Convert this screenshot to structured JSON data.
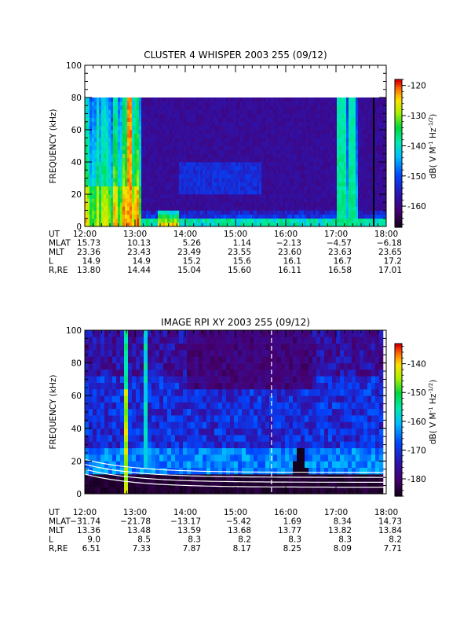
{
  "chart_data": [
    {
      "type": "heatmap",
      "title": "CLUSTER 4 WHISPER 2003 255 (09/12)",
      "ylabel": "FREQUENCY (kHz)",
      "ylim": [
        0,
        100
      ],
      "yticks": [
        "0",
        "20",
        "40",
        "60",
        "80",
        "100"
      ],
      "xlim": [
        "12:00",
        "18:00"
      ],
      "colorbar": {
        "label": "dB( V M⁻¹ Hz⁻¹ᐟ²)",
        "label_parts": {
          "a": "dB( V M",
          "b": "-1",
          "c": " Hz",
          "d": "-1/2",
          "e": ")"
        },
        "range": [
          -167,
          -118
        ],
        "ticks": [
          "-120",
          "-130",
          "-140",
          "-150",
          "-160"
        ],
        "colormap": "rainbow"
      },
      "data_region": {
        "freq_max_khz": 80
      },
      "events": [
        {
          "name": "broadband emission",
          "start": "12:00",
          "end": "13:05",
          "freq_top_khz": 80,
          "level_db": -128
        },
        {
          "name": "intense burst",
          "start": "12:48",
          "end": "12:56",
          "freq_top_khz": 80,
          "level_db": -120
        },
        {
          "name": "low-frequency enhancement",
          "start": "13:25",
          "end": "13:50",
          "freq_top_khz": 10,
          "level_db": -122
        },
        {
          "name": "emission band",
          "start": "17:00",
          "end": "17:25",
          "freq_top_khz": 80,
          "level_db": -140
        },
        {
          "name": "data gap",
          "start": "17:44",
          "end": "17:46",
          "level_db": null
        }
      ],
      "ephemeris": {
        "rows": [
          {
            "label": "UT",
            "values": [
              "12:00",
              "13:00",
              "14:00",
              "15:00",
              "16:00",
              "17:00",
              "18:00"
            ]
          },
          {
            "label": "MLAT",
            "values": [
              "15.73",
              "10.13",
              "5.26",
              "1.14",
              "−2.13",
              "−4.57",
              "−6.18"
            ]
          },
          {
            "label": "MLT",
            "values": [
              "23.36",
              "23.43",
              "23.49",
              "23.55",
              "23.60",
              "23.63",
              "23.65"
            ]
          },
          {
            "label": "L",
            "values": [
              "14.9",
              "14.9",
              "15.2",
              "15.6",
              "16.1",
              "16.7",
              "17.2"
            ]
          },
          {
            "label": "R,RE",
            "values": [
              "13.80",
              "14.44",
              "15.04",
              "15.60",
              "16.11",
              "16.58",
              "17.01"
            ]
          }
        ]
      }
    },
    {
      "type": "heatmap",
      "title": "IMAGE RPI XY 2003 255 (09/12)",
      "ylabel": "FREQUENCY (kHz)",
      "ylim": [
        0,
        100
      ],
      "yticks": [
        "0",
        "20",
        "40",
        "60",
        "80",
        "100"
      ],
      "xlim": [
        "12:00",
        "18:00"
      ],
      "colorbar": {
        "label": "dB( V M⁻¹ Hz⁻¹ᐟ²)",
        "label_parts": {
          "a": "dB( V M",
          "b": "-1",
          "c": " Hz",
          "d": "-1/2",
          "e": ")"
        },
        "range": [
          -186,
          -133
        ],
        "ticks": [
          "-140",
          "-150",
          "-160",
          "-170",
          "-180"
        ],
        "colormap": "rainbow"
      },
      "events": [
        {
          "name": "intense narrow emission",
          "start": "12:45",
          "end": "12:50",
          "freq_top_khz": 100,
          "level_db": -140
        },
        {
          "name": "dashed marker",
          "time": "15:43"
        },
        {
          "name": "low-level black region",
          "start": "16:00",
          "end": "16:30",
          "freq_top_khz": 30,
          "level_db": -186
        }
      ],
      "ephemeris": {
        "rows": [
          {
            "label": "UT",
            "values": [
              "12:00",
              "13:00",
              "14:00",
              "15:00",
              "16:00",
              "17:00",
              "18:00"
            ]
          },
          {
            "label": "MLAT",
            "values": [
              "−31.74",
              "−21.78",
              "−13.17",
              "−5.42",
              "1.69",
              "8.34",
              "14.73"
            ]
          },
          {
            "label": "MLT",
            "values": [
              "13.36",
              "13.48",
              "13.59",
              "13.68",
              "13.77",
              "13.82",
              "13.84"
            ]
          },
          {
            "label": "L",
            "values": [
              "9.0",
              "8.5",
              "8.3",
              "8.2",
              "8.3",
              "8.3",
              "8.2"
            ]
          },
          {
            "label": "R,RE",
            "values": [
              "6.51",
              "7.33",
              "7.87",
              "8.17",
              "8.25",
              "8.09",
              "7.71"
            ]
          }
        ]
      }
    }
  ]
}
